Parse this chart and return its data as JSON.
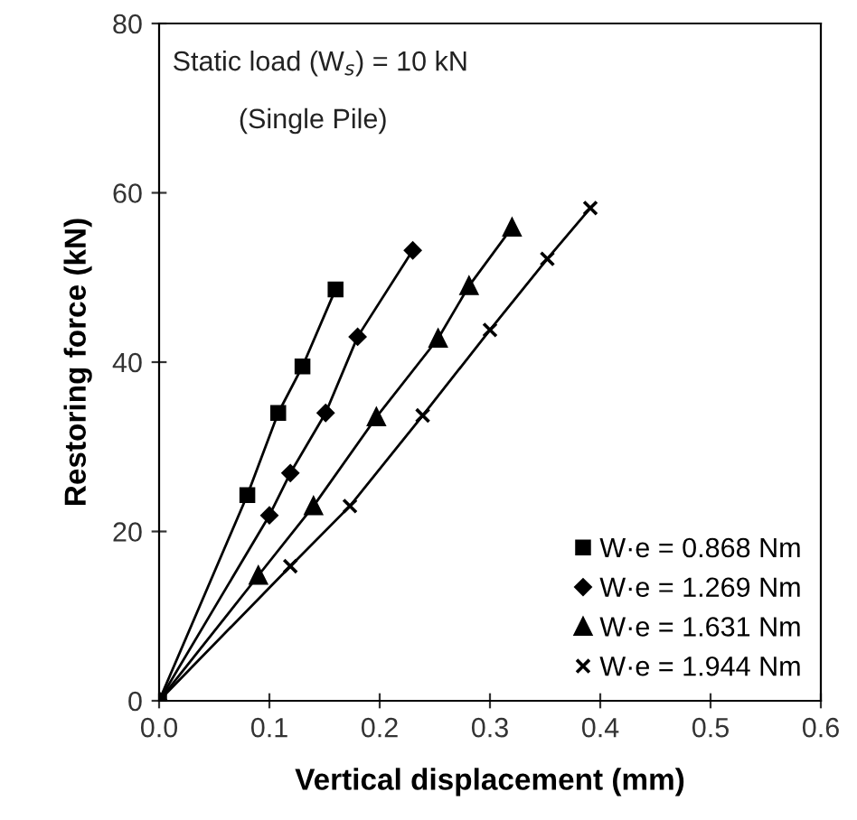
{
  "chart_data": {
    "type": "line",
    "xlabel": "Vertical displacement (mm)",
    "ylabel": "Restoring force (kN)",
    "annotations": [
      "Static load (W$_{s}$) = 10 kN",
      "(Single Pile)"
    ],
    "xlim": [
      0,
      0.6
    ],
    "ylim": [
      0,
      80
    ],
    "xticks": [
      {
        "value": 0,
        "label": "0.0"
      },
      0.1,
      0.2,
      0.3,
      0.4,
      0.5,
      0.6
    ],
    "yticks": [
      0,
      20,
      40,
      60,
      80
    ],
    "grid": false,
    "legend": "bottom right",
    "line_style": "solid",
    "series": [
      {
        "name": "W·e = 0.868 Nm",
        "color": "#000000",
        "marker": "square",
        "x": [
          0,
          0.08,
          0.108,
          0.13,
          0.16
        ],
        "values": [
          0,
          24.3,
          34.0,
          39.5,
          48.6
        ]
      },
      {
        "name": "W·e = 1.269 Nm",
        "color": "#000000",
        "marker": "diamond",
        "x": [
          0,
          0.1,
          0.119,
          0.151,
          0.18,
          0.23
        ],
        "values": [
          0,
          21.9,
          26.9,
          34.0,
          43.0,
          53.2
        ]
      },
      {
        "name": "W·e = 1.631 Nm",
        "color": "#000000",
        "marker": "triangle",
        "x": [
          0,
          0.09,
          0.14,
          0.197,
          0.253,
          0.281,
          0.32
        ],
        "values": [
          0,
          14.8,
          23.0,
          33.5,
          42.8,
          49.0,
          55.9
        ]
      },
      {
        "name": "W·e = 1.944 Nm",
        "color": "#000000",
        "marker": "cross",
        "x": [
          0,
          0.119,
          0.173,
          0.239,
          0.3,
          0.352,
          0.391
        ],
        "values": [
          0,
          15.9,
          23.0,
          33.7,
          43.8,
          52.2,
          58.2
        ]
      }
    ]
  }
}
